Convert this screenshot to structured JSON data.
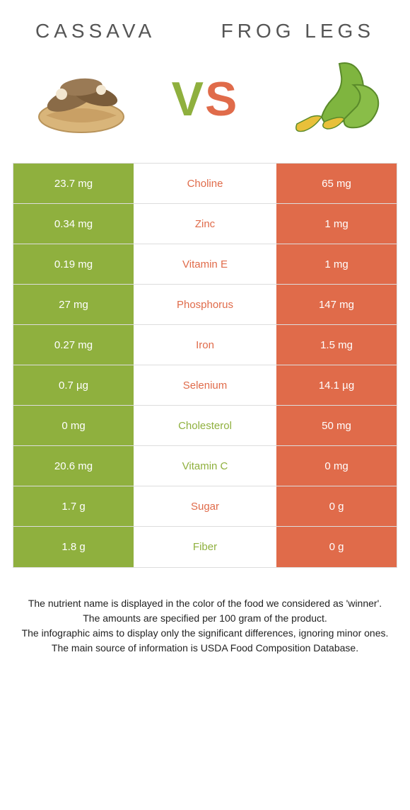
{
  "colors": {
    "left": "#8fb03e",
    "right": "#e06b4a",
    "row_border": "#dddddd",
    "text_white": "#ffffff",
    "title_grey": "#555555"
  },
  "header": {
    "left_title": "CASSAVA",
    "right_title": "FROG LEGS",
    "vs_v": "V",
    "vs_s": "S"
  },
  "table": {
    "type": "comparison-table",
    "rows": [
      {
        "left": "23.7 mg",
        "label": "Choline",
        "right": "65 mg",
        "winner": "right"
      },
      {
        "left": "0.34 mg",
        "label": "Zinc",
        "right": "1 mg",
        "winner": "right"
      },
      {
        "left": "0.19 mg",
        "label": "Vitamin E",
        "right": "1 mg",
        "winner": "right"
      },
      {
        "left": "27 mg",
        "label": "Phosphorus",
        "right": "147 mg",
        "winner": "right"
      },
      {
        "left": "0.27 mg",
        "label": "Iron",
        "right": "1.5 mg",
        "winner": "right"
      },
      {
        "left": "0.7 µg",
        "label": "Selenium",
        "right": "14.1 µg",
        "winner": "right"
      },
      {
        "left": "0 mg",
        "label": "Cholesterol",
        "right": "50 mg",
        "winner": "left"
      },
      {
        "left": "20.6 mg",
        "label": "Vitamin C",
        "right": "0 mg",
        "winner": "left"
      },
      {
        "left": "1.7 g",
        "label": "Sugar",
        "right": "0 g",
        "winner": "right"
      },
      {
        "left": "1.8 g",
        "label": "Fiber",
        "right": "0 g",
        "winner": "left"
      }
    ]
  },
  "footer": {
    "line1": "The nutrient name is displayed in the color of the food we considered as 'winner'.",
    "line2": "The amounts are specified per 100 gram of the product.",
    "line3": "The infographic aims to display only the significant differences, ignoring minor ones.",
    "line4": "The main source of information is USDA Food Composition Database."
  }
}
